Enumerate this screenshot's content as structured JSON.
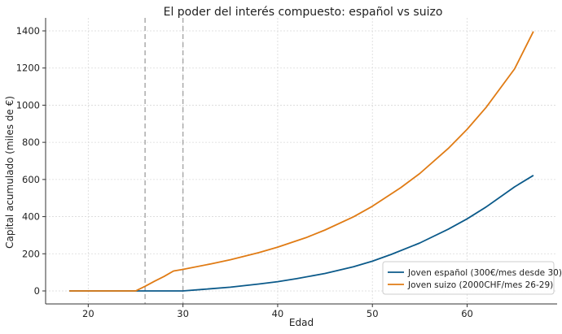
{
  "chart_data": {
    "type": "line",
    "title": "El poder del interés compuesto: español vs suizo",
    "xlabel": "Edad",
    "ylabel": "Capital acumulado (miles de €)",
    "xlim": [
      15.5,
      69.5
    ],
    "ylim": [
      -70,
      1470
    ],
    "xticks": [
      20,
      30,
      40,
      50,
      60
    ],
    "yticks": [
      0,
      200,
      400,
      600,
      800,
      1000,
      1200,
      1400
    ],
    "grid": true,
    "legend_position": "bottom-right",
    "vlines": [
      26,
      30
    ],
    "series": [
      {
        "name": "Joven español (300€/mes desde 30)",
        "color": "#0b5a8a",
        "x": [
          18,
          20,
          25,
          29,
          30,
          32,
          35,
          38,
          40,
          42,
          45,
          48,
          50,
          52,
          55,
          58,
          60,
          62,
          65,
          67
        ],
        "y": [
          0,
          0,
          0,
          0,
          0,
          8,
          20,
          37,
          50,
          66,
          94,
          130,
          160,
          197,
          258,
          332,
          388,
          452,
          560,
          622
        ]
      },
      {
        "name": "Joven suizo (2000CHF/mes 26-29)",
        "color": "#e07b14",
        "x": [
          18,
          20,
          25,
          26,
          27,
          28,
          29,
          30,
          33,
          35,
          38,
          40,
          43,
          45,
          48,
          50,
          53,
          55,
          58,
          60,
          62,
          65,
          67
        ],
        "y": [
          0,
          0,
          0,
          25,
          52,
          78,
          107,
          116,
          146,
          168,
          206,
          236,
          287,
          328,
          399,
          456,
          556,
          632,
          767,
          870,
          988,
          1195,
          1397
        ]
      }
    ]
  }
}
